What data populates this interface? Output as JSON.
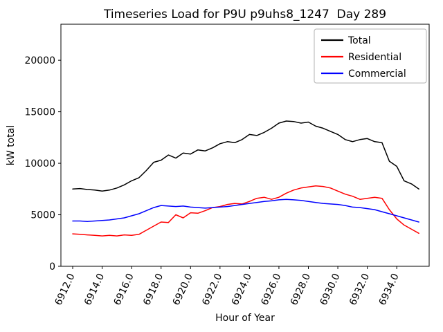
{
  "chart_data": {
    "type": "line",
    "title": "Timeseries Load for P9U p9uhs8_1247  Day 289",
    "xlabel": "Hour of Year",
    "ylabel": "kW total",
    "xlim": [
      6911.2,
      6936.2
    ],
    "ylim": [
      0,
      23500
    ],
    "xticks": [
      6912,
      6914,
      6916,
      6918,
      6920,
      6922,
      6924,
      6926,
      6928,
      6930,
      6932,
      6934
    ],
    "xtick_labels": [
      "6912.0",
      "6914.0",
      "6916.0",
      "6918.0",
      "6920.0",
      "6922.0",
      "6924.0",
      "6926.0",
      "6928.0",
      "6930.0",
      "6932.0",
      "6934.0"
    ],
    "yticks": [
      0,
      5000,
      10000,
      15000,
      20000
    ],
    "ytick_labels": [
      "0",
      "5000",
      "10000",
      "15000",
      "20000"
    ],
    "grid": false,
    "legend_position": "upper right",
    "legend_entries": [
      "Total",
      "Residential",
      "Commercial"
    ],
    "x": [
      6912.0,
      6912.5,
      6913.0,
      6913.5,
      6914.0,
      6914.5,
      6915.0,
      6915.5,
      6916.0,
      6916.5,
      6917.0,
      6917.5,
      6918.0,
      6918.5,
      6919.0,
      6919.5,
      6920.0,
      6920.5,
      6921.0,
      6921.5,
      6922.0,
      6922.5,
      6923.0,
      6923.5,
      6924.0,
      6924.5,
      6925.0,
      6925.5,
      6926.0,
      6926.5,
      6927.0,
      6927.5,
      6928.0,
      6928.5,
      6929.0,
      6929.5,
      6930.0,
      6930.5,
      6931.0,
      6931.5,
      6932.0,
      6932.5,
      6933.0,
      6933.5,
      6934.0,
      6934.5,
      6935.0,
      6935.5
    ],
    "series": [
      {
        "name": "Total",
        "color": "#000000",
        "values": [
          7500,
          7550,
          7450,
          7400,
          7300,
          7400,
          7600,
          7900,
          8300,
          8600,
          9300,
          10100,
          10300,
          10800,
          10500,
          11000,
          10900,
          11300,
          11200,
          11500,
          11900,
          12100,
          12000,
          12300,
          12800,
          12700,
          13000,
          13400,
          13900,
          14100,
          14050,
          13900,
          14000,
          13600,
          13400,
          13100,
          12800,
          12300,
          12100,
          12300,
          12400,
          12100,
          12000,
          10200,
          9700,
          8300,
          8000,
          7500
        ]
      },
      {
        "name": "Residential",
        "color": "#ff0000",
        "values": [
          3150,
          3100,
          3050,
          3000,
          2950,
          3000,
          2950,
          3050,
          3000,
          3100,
          3500,
          3900,
          4300,
          4250,
          5000,
          4700,
          5200,
          5150,
          5400,
          5700,
          5800,
          6000,
          6100,
          6050,
          6300,
          6600,
          6700,
          6500,
          6700,
          7100,
          7400,
          7600,
          7700,
          7800,
          7750,
          7600,
          7300,
          7000,
          6800,
          6500,
          6600,
          6700,
          6600,
          5500,
          4600,
          4000,
          3600,
          3200
        ]
      },
      {
        "name": "Commercial",
        "color": "#0000ff",
        "values": [
          4400,
          4400,
          4350,
          4400,
          4450,
          4500,
          4600,
          4700,
          4900,
          5100,
          5400,
          5700,
          5900,
          5850,
          5800,
          5850,
          5750,
          5700,
          5650,
          5700,
          5750,
          5800,
          5900,
          6000,
          6100,
          6200,
          6300,
          6350,
          6450,
          6500,
          6450,
          6400,
          6300,
          6200,
          6100,
          6050,
          6000,
          5900,
          5750,
          5700,
          5600,
          5500,
          5300,
          5100,
          4900,
          4700,
          4500,
          4300
        ]
      }
    ]
  }
}
